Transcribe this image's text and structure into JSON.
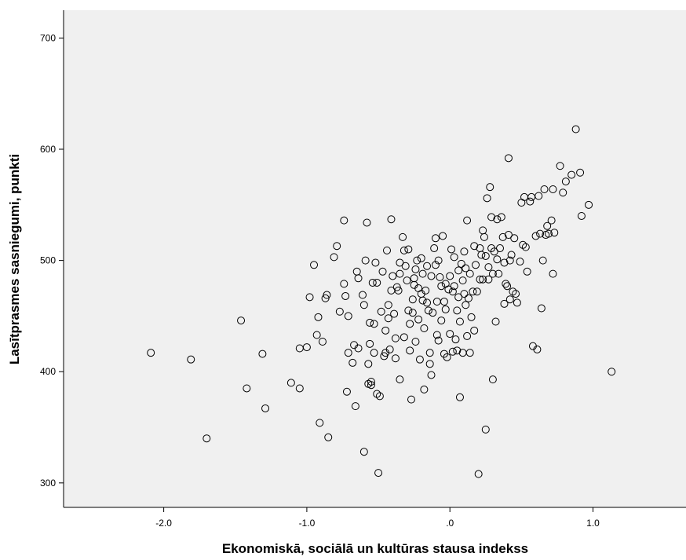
{
  "chart_data": {
    "type": "scatter",
    "xlabel": "Ekonomiskā, sociālā un kultūras stausa indekss",
    "ylabel": "Lasītprasmes sasniegumi, punkti",
    "xlim": [
      -2.7,
      1.65
    ],
    "ylim": [
      278,
      725
    ],
    "x_ticks": [
      -2.0,
      -1.0,
      0.0,
      1.0
    ],
    "x_tick_labels": [
      "-2.0",
      "-1.0",
      ".0",
      "1.0"
    ],
    "y_ticks": [
      300,
      400,
      500,
      600,
      700
    ],
    "y_tick_labels": [
      "300",
      "400",
      "500",
      "600",
      "700"
    ],
    "grid": false,
    "plot_background": "#f0f0f0",
    "marker_color": "#000000",
    "points": [
      [
        -2.09,
        417
      ],
      [
        -1.81,
        411
      ],
      [
        -1.7,
        340
      ],
      [
        -1.46,
        446
      ],
      [
        -1.42,
        385
      ],
      [
        -1.31,
        416
      ],
      [
        -1.29,
        367
      ],
      [
        -1.11,
        390
      ],
      [
        -1.05,
        385
      ],
      [
        -1.05,
        421
      ],
      [
        -1.0,
        422
      ],
      [
        -0.98,
        467
      ],
      [
        -0.95,
        496
      ],
      [
        -0.93,
        433
      ],
      [
        -0.92,
        449
      ],
      [
        -0.91,
        354
      ],
      [
        -0.89,
        427
      ],
      [
        -0.87,
        466
      ],
      [
        -0.86,
        469
      ],
      [
        -0.85,
        341
      ],
      [
        -0.81,
        503
      ],
      [
        -0.79,
        513
      ],
      [
        -0.77,
        454
      ],
      [
        -0.74,
        536
      ],
      [
        -0.74,
        479
      ],
      [
        -0.73,
        468
      ],
      [
        -0.72,
        382
      ],
      [
        -0.71,
        450
      ],
      [
        -0.71,
        417
      ],
      [
        -0.68,
        408
      ],
      [
        -0.67,
        424
      ],
      [
        -0.66,
        369
      ],
      [
        -0.65,
        490
      ],
      [
        -0.64,
        484
      ],
      [
        -0.64,
        421
      ],
      [
        -0.61,
        469
      ],
      [
        -0.6,
        460
      ],
      [
        -0.6,
        328
      ],
      [
        -0.59,
        500
      ],
      [
        -0.58,
        534
      ],
      [
        -0.57,
        389
      ],
      [
        -0.57,
        407
      ],
      [
        -0.56,
        425
      ],
      [
        -0.56,
        444
      ],
      [
        -0.55,
        391
      ],
      [
        -0.55,
        388
      ],
      [
        -0.54,
        480
      ],
      [
        -0.53,
        443
      ],
      [
        -0.53,
        417
      ],
      [
        -0.52,
        498
      ],
      [
        -0.51,
        480
      ],
      [
        -0.51,
        380
      ],
      [
        -0.5,
        309
      ],
      [
        -0.49,
        378
      ],
      [
        -0.48,
        454
      ],
      [
        -0.47,
        490
      ],
      [
        -0.46,
        414
      ],
      [
        -0.45,
        437
      ],
      [
        -0.45,
        417
      ],
      [
        -0.44,
        509
      ],
      [
        -0.43,
        460
      ],
      [
        -0.43,
        448
      ],
      [
        -0.42,
        420
      ],
      [
        -0.41,
        537
      ],
      [
        -0.41,
        473
      ],
      [
        -0.4,
        486
      ],
      [
        -0.39,
        452
      ],
      [
        -0.38,
        430
      ],
      [
        -0.38,
        412
      ],
      [
        -0.37,
        476
      ],
      [
        -0.36,
        473
      ],
      [
        -0.35,
        498
      ],
      [
        -0.35,
        488
      ],
      [
        -0.35,
        393
      ],
      [
        -0.33,
        521
      ],
      [
        -0.32,
        509
      ],
      [
        -0.32,
        431
      ],
      [
        -0.31,
        495
      ],
      [
        -0.3,
        482
      ],
      [
        -0.29,
        510
      ],
      [
        -0.29,
        455
      ],
      [
        -0.28,
        443
      ],
      [
        -0.28,
        419
      ],
      [
        -0.27,
        375
      ],
      [
        -0.26,
        465
      ],
      [
        -0.26,
        453
      ],
      [
        -0.25,
        484
      ],
      [
        -0.25,
        478
      ],
      [
        -0.24,
        492
      ],
      [
        -0.24,
        427
      ],
      [
        -0.23,
        500
      ],
      [
        -0.22,
        475
      ],
      [
        -0.22,
        447
      ],
      [
        -0.21,
        411
      ],
      [
        -0.2,
        502
      ],
      [
        -0.2,
        470
      ],
      [
        -0.19,
        488
      ],
      [
        -0.19,
        464
      ],
      [
        -0.18,
        439
      ],
      [
        -0.18,
        384
      ],
      [
        -0.17,
        473
      ],
      [
        -0.16,
        495
      ],
      [
        -0.16,
        462
      ],
      [
        -0.15,
        455
      ],
      [
        -0.14,
        417
      ],
      [
        -0.14,
        407
      ],
      [
        -0.13,
        486
      ],
      [
        -0.13,
        397
      ],
      [
        -0.12,
        453
      ],
      [
        -0.11,
        511
      ],
      [
        -0.1,
        520
      ],
      [
        -0.1,
        496
      ],
      [
        -0.09,
        463
      ],
      [
        -0.09,
        433
      ],
      [
        -0.08,
        500
      ],
      [
        -0.08,
        428
      ],
      [
        -0.07,
        485
      ],
      [
        -0.06,
        477
      ],
      [
        -0.06,
        446
      ],
      [
        -0.05,
        522
      ],
      [
        -0.04,
        463
      ],
      [
        -0.04,
        416
      ],
      [
        -0.03,
        479
      ],
      [
        -0.03,
        456
      ],
      [
        -0.02,
        413
      ],
      [
        -0.01,
        474
      ],
      [
        0.0,
        486
      ],
      [
        0.0,
        434
      ],
      [
        0.01,
        510
      ],
      [
        0.02,
        472
      ],
      [
        0.02,
        418
      ],
      [
        0.03,
        503
      ],
      [
        0.03,
        477
      ],
      [
        0.04,
        429
      ],
      [
        0.05,
        455
      ],
      [
        0.05,
        419
      ],
      [
        0.06,
        491
      ],
      [
        0.06,
        467
      ],
      [
        0.07,
        445
      ],
      [
        0.07,
        377
      ],
      [
        0.08,
        497
      ],
      [
        0.09,
        482
      ],
      [
        0.09,
        417
      ],
      [
        0.1,
        508
      ],
      [
        0.1,
        470
      ],
      [
        0.11,
        493
      ],
      [
        0.11,
        460
      ],
      [
        0.12,
        536
      ],
      [
        0.12,
        432
      ],
      [
        0.13,
        466
      ],
      [
        0.14,
        488
      ],
      [
        0.14,
        417
      ],
      [
        0.15,
        449
      ],
      [
        0.16,
        472
      ],
      [
        0.17,
        513
      ],
      [
        0.17,
        437
      ],
      [
        0.18,
        496
      ],
      [
        0.19,
        472
      ],
      [
        0.2,
        308
      ],
      [
        0.21,
        483
      ],
      [
        0.21,
        511
      ],
      [
        0.22,
        505
      ],
      [
        0.23,
        483
      ],
      [
        0.23,
        527
      ],
      [
        0.24,
        521
      ],
      [
        0.25,
        504
      ],
      [
        0.25,
        348
      ],
      [
        0.26,
        556
      ],
      [
        0.27,
        494
      ],
      [
        0.27,
        483
      ],
      [
        0.28,
        566
      ],
      [
        0.29,
        539
      ],
      [
        0.29,
        511
      ],
      [
        0.3,
        488
      ],
      [
        0.3,
        393
      ],
      [
        0.31,
        508
      ],
      [
        0.32,
        445
      ],
      [
        0.33,
        537
      ],
      [
        0.33,
        501
      ],
      [
        0.34,
        488
      ],
      [
        0.35,
        511
      ],
      [
        0.36,
        539
      ],
      [
        0.37,
        521
      ],
      [
        0.38,
        498
      ],
      [
        0.38,
        461
      ],
      [
        0.39,
        479
      ],
      [
        0.4,
        477
      ],
      [
        0.41,
        592
      ],
      [
        0.41,
        523
      ],
      [
        0.42,
        500
      ],
      [
        0.42,
        465
      ],
      [
        0.43,
        505
      ],
      [
        0.44,
        472
      ],
      [
        0.45,
        520
      ],
      [
        0.46,
        470
      ],
      [
        0.47,
        462
      ],
      [
        0.49,
        499
      ],
      [
        0.5,
        552
      ],
      [
        0.51,
        514
      ],
      [
        0.52,
        557
      ],
      [
        0.53,
        512
      ],
      [
        0.54,
        490
      ],
      [
        0.56,
        553
      ],
      [
        0.57,
        557
      ],
      [
        0.58,
        423
      ],
      [
        0.6,
        522
      ],
      [
        0.61,
        420
      ],
      [
        0.62,
        558
      ],
      [
        0.63,
        524
      ],
      [
        0.64,
        457
      ],
      [
        0.65,
        500
      ],
      [
        0.66,
        564
      ],
      [
        0.67,
        523
      ],
      [
        0.68,
        531
      ],
      [
        0.69,
        524
      ],
      [
        0.71,
        536
      ],
      [
        0.72,
        488
      ],
      [
        0.72,
        564
      ],
      [
        0.73,
        525
      ],
      [
        0.77,
        585
      ],
      [
        0.79,
        561
      ],
      [
        0.81,
        571
      ],
      [
        0.85,
        577
      ],
      [
        0.88,
        618
      ],
      [
        0.91,
        579
      ],
      [
        0.92,
        540
      ],
      [
        0.97,
        550
      ],
      [
        1.13,
        400
      ]
    ]
  }
}
